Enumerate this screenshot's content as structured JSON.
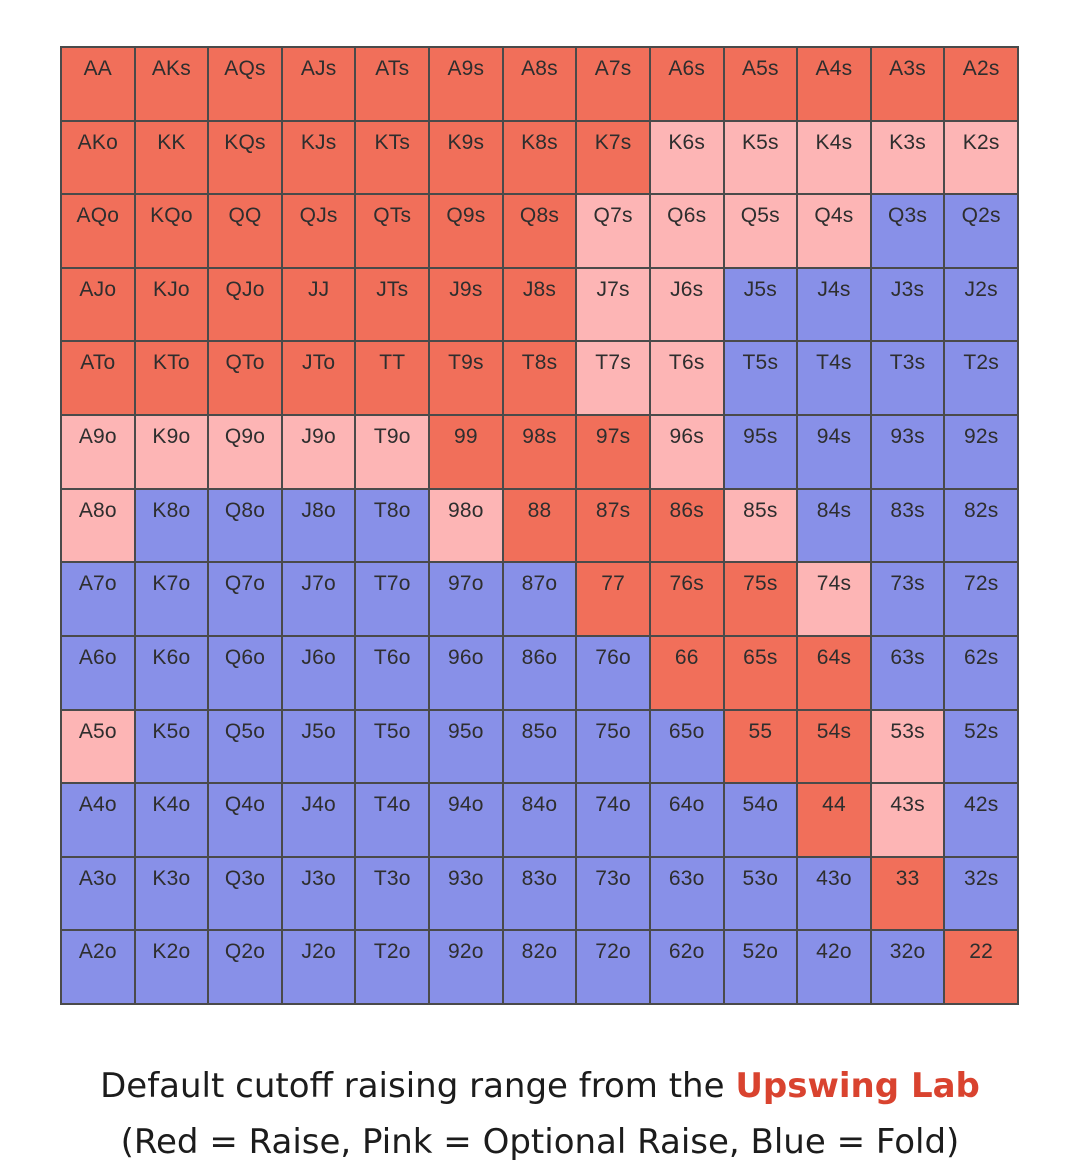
{
  "colors": {
    "raise": "#f16f5a",
    "optional": "#fdb5b5",
    "fold": "#8890e8"
  },
  "grid": {
    "rows": [
      {
        "hands": [
          "AA",
          "AKs",
          "AQs",
          "AJs",
          "ATs",
          "A9s",
          "A8s",
          "A7s",
          "A6s",
          "A5s",
          "A4s",
          "A3s",
          "A2s"
        ],
        "actions": "RRRRRRRRRRRRR"
      },
      {
        "hands": [
          "AKo",
          "KK",
          "KQs",
          "KJs",
          "KTs",
          "K9s",
          "K8s",
          "K7s",
          "K6s",
          "K5s",
          "K4s",
          "K3s",
          "K2s"
        ],
        "actions": "RRRRRRRRPPPPP"
      },
      {
        "hands": [
          "AQo",
          "KQo",
          "QQ",
          "QJs",
          "QTs",
          "Q9s",
          "Q8s",
          "Q7s",
          "Q6s",
          "Q5s",
          "Q4s",
          "Q3s",
          "Q2s"
        ],
        "actions": "RRRRRRRPPPPFF"
      },
      {
        "hands": [
          "AJo",
          "KJo",
          "QJo",
          "JJ",
          "JTs",
          "J9s",
          "J8s",
          "J7s",
          "J6s",
          "J5s",
          "J4s",
          "J3s",
          "J2s"
        ],
        "actions": "RRRRRRRPPFFFF"
      },
      {
        "hands": [
          "ATo",
          "KTo",
          "QTo",
          "JTo",
          "TT",
          "T9s",
          "T8s",
          "T7s",
          "T6s",
          "T5s",
          "T4s",
          "T3s",
          "T2s"
        ],
        "actions": "RRRRRRRPPFFFF"
      },
      {
        "hands": [
          "A9o",
          "K9o",
          "Q9o",
          "J9o",
          "T9o",
          "99",
          "98s",
          "97s",
          "96s",
          "95s",
          "94s",
          "93s",
          "92s"
        ],
        "actions": "PPPPPRRRPFFFF"
      },
      {
        "hands": [
          "A8o",
          "K8o",
          "Q8o",
          "J8o",
          "T8o",
          "98o",
          "88",
          "87s",
          "86s",
          "85s",
          "84s",
          "83s",
          "82s"
        ],
        "actions": "PFFFFPRRRPFFF"
      },
      {
        "hands": [
          "A7o",
          "K7o",
          "Q7o",
          "J7o",
          "T7o",
          "97o",
          "87o",
          "77",
          "76s",
          "75s",
          "74s",
          "73s",
          "72s"
        ],
        "actions": "FFFFFFFRRRPFF"
      },
      {
        "hands": [
          "A6o",
          "K6o",
          "Q6o",
          "J6o",
          "T6o",
          "96o",
          "86o",
          "76o",
          "66",
          "65s",
          "64s",
          "63s",
          "62s"
        ],
        "actions": "FFFFFFFFRRRFF"
      },
      {
        "hands": [
          "A5o",
          "K5o",
          "Q5o",
          "J5o",
          "T5o",
          "95o",
          "85o",
          "75o",
          "65o",
          "55",
          "54s",
          "53s",
          "52s"
        ],
        "actions": "PFFFFFFFFRRPF"
      },
      {
        "hands": [
          "A4o",
          "K4o",
          "Q4o",
          "J4o",
          "T4o",
          "94o",
          "84o",
          "74o",
          "64o",
          "54o",
          "44",
          "43s",
          "42s"
        ],
        "actions": "FFFFFFFFFFRPF"
      },
      {
        "hands": [
          "A3o",
          "K3o",
          "Q3o",
          "J3o",
          "T3o",
          "93o",
          "83o",
          "73o",
          "63o",
          "53o",
          "43o",
          "33",
          "32s"
        ],
        "actions": "FFFFFFFFFFFRF"
      },
      {
        "hands": [
          "A2o",
          "K2o",
          "Q2o",
          "J2o",
          "T2o",
          "92o",
          "82o",
          "72o",
          "62o",
          "52o",
          "42o",
          "32o",
          "22"
        ],
        "actions": "FFFFFFFFFFFFR"
      }
    ]
  },
  "caption": {
    "line1_prefix": "Default cutoff raising range from the ",
    "line1_brand": "Upswing Lab",
    "line2": "(Red = Raise, Pink = Optional Raise, Blue = Fold)"
  }
}
